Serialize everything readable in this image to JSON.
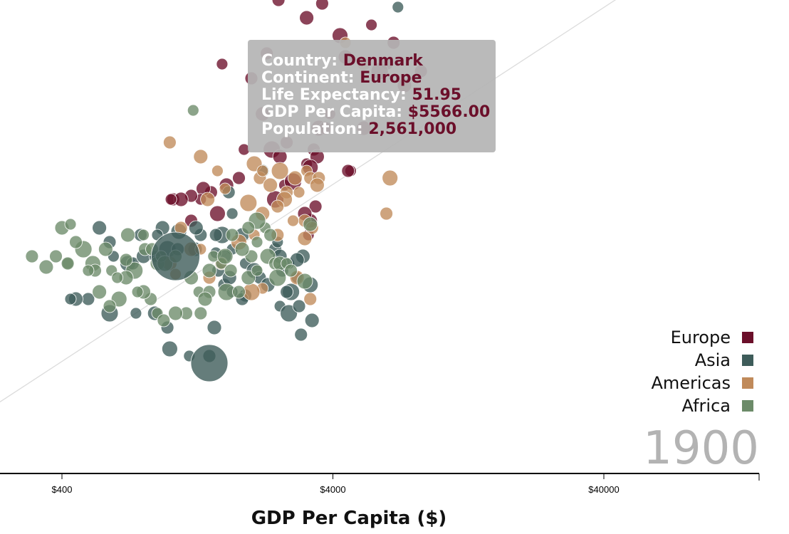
{
  "chart_data": {
    "type": "scatter",
    "title": "",
    "xlabel": "GDP Per Capita ($)",
    "ylabel": "",
    "x_scale": "log",
    "xlim": [
      170,
      70000
    ],
    "ylim": [
      20,
      90
    ],
    "grid": false,
    "legend_position": "right",
    "x_ticks": [
      {
        "value": 400,
        "label": "$400"
      },
      {
        "value": 4000,
        "label": "$4000"
      },
      {
        "value": 40000,
        "label": "$40000"
      }
    ],
    "year": "1900",
    "trend_line": {
      "x": [
        170,
        70000
      ],
      "y": [
        17.0,
        82.0
      ]
    },
    "series": [
      {
        "name": "Europe",
        "color": "#6b0f2a",
        "points": [
          [
            2937,
            80
          ],
          [
            2520,
            77
          ],
          [
            3650,
            76.5
          ],
          [
            3200,
            74.5
          ],
          [
            5550,
            73.5
          ],
          [
            4250,
            72
          ],
          [
            6700,
            71
          ],
          [
            4450,
            69
          ],
          [
            6350,
            68
          ],
          [
            5950,
            67
          ],
          [
            8450,
            67
          ],
          [
            7350,
            65
          ],
          [
            1560,
            68
          ],
          [
            2280,
            69.5
          ],
          [
            2000,
            66
          ],
          [
            2200,
            61
          ],
          [
            3900,
            61
          ],
          [
            3550,
            59
          ],
          [
            3750,
            59
          ],
          [
            5200,
            59
          ],
          [
            1880,
            56
          ],
          [
            2380,
            56
          ],
          [
            2700,
            57
          ],
          [
            2550,
            55
          ],
          [
            4650,
            53
          ],
          [
            4550,
            53
          ],
          [
            3400,
            56
          ],
          [
            3500,
            55
          ],
          [
            3200,
            54
          ],
          [
            3300,
            53.5
          ],
          [
            1800,
            52
          ],
          [
            1620,
            51
          ],
          [
            2650,
            51
          ],
          [
            2850,
            51.5
          ],
          [
            1420,
            50
          ],
          [
            1330,
            50.5
          ],
          [
            1300,
            49
          ],
          [
            1200,
            49.5
          ],
          [
            1030,
            49
          ],
          [
            1100,
            49
          ],
          [
            1010,
            49
          ],
          [
            1500,
            47
          ],
          [
            1200,
            46
          ],
          [
            3300,
            46
          ],
          [
            3250,
            44
          ],
          [
            2450,
            49
          ],
          [
            3450,
            48
          ],
          [
            3150,
            47
          ]
        ]
      },
      {
        "name": "Asia",
        "color": "#3e5c5a",
        "points": [
          [
            6950,
            76
          ],
          [
            1650,
            50
          ],
          [
            2200,
            53
          ],
          [
            940,
            45
          ],
          [
            900,
            44
          ],
          [
            1080,
            44.5
          ],
          [
            1300,
            44
          ],
          [
            1250,
            45
          ],
          [
            1700,
            47
          ],
          [
            1560,
            44
          ],
          [
            1480,
            44
          ],
          [
            1850,
            44
          ],
          [
            1700,
            42
          ],
          [
            1600,
            41
          ],
          [
            2450,
            42
          ],
          [
            2550,
            41
          ],
          [
            2750,
            40
          ],
          [
            3300,
            37
          ],
          [
            2600,
            39
          ],
          [
            3100,
            41
          ],
          [
            2950,
            38
          ],
          [
            2800,
            36
          ],
          [
            2700,
            36
          ],
          [
            2950,
            40.5
          ],
          [
            2500,
            43
          ],
          [
            780,
            44
          ],
          [
            600,
            43
          ],
          [
            550,
            45
          ],
          [
            620,
            41
          ],
          [
            700,
            40
          ],
          [
            730,
            40
          ],
          [
            800,
            41
          ],
          [
            880,
            41
          ],
          [
            980,
            42
          ],
          [
            1070,
            42
          ],
          [
            1240,
            42
          ],
          [
            1480,
            41.5
          ],
          [
            1510,
            39
          ],
          [
            1590,
            37
          ],
          [
            1660,
            38
          ],
          [
            1900,
            40
          ],
          [
            2050,
            39
          ],
          [
            2150,
            38
          ],
          [
            2300,
            37
          ],
          [
            2550,
            34
          ],
          [
            2750,
            33
          ],
          [
            3000,
            34
          ],
          [
            3350,
            32
          ],
          [
            1700,
            36
          ],
          [
            1900,
            35.5
          ],
          [
            1850,
            35
          ],
          [
            1460,
            31
          ],
          [
            1180,
            27
          ],
          [
            1000,
            28
          ],
          [
            980,
            31
          ],
          [
            880,
            33
          ],
          [
            750,
            33
          ],
          [
            600,
            33
          ],
          [
            500,
            35
          ],
          [
            450,
            35
          ],
          [
            430,
            35
          ],
          [
            3050,
            30
          ],
          [
            1400,
            27
          ]
        ]
      },
      {
        "name": "Americas",
        "color": "#c08a5a",
        "points": [
          [
            4450,
            71
          ],
          [
            5200,
            68
          ],
          [
            1000,
            57
          ],
          [
            1300,
            55
          ],
          [
            1500,
            53
          ],
          [
            2050,
            54
          ],
          [
            2150,
            52
          ],
          [
            2350,
            51
          ],
          [
            2200,
            53
          ],
          [
            2550,
            53
          ],
          [
            2700,
            50
          ],
          [
            2900,
            52
          ],
          [
            3200,
            53
          ],
          [
            3300,
            52
          ],
          [
            3550,
            52
          ],
          [
            3500,
            51
          ],
          [
            3000,
            50
          ],
          [
            2650,
            49
          ],
          [
            2500,
            48
          ],
          [
            1380,
            49
          ],
          [
            1600,
            50.5
          ],
          [
            1950,
            48.5
          ],
          [
            3150,
            46
          ],
          [
            2200,
            47
          ],
          [
            2850,
            46
          ],
          [
            2500,
            44
          ],
          [
            3350,
            45
          ],
          [
            3150,
            43.5
          ],
          [
            2050,
            44
          ],
          [
            1800,
            43
          ],
          [
            3300,
            35
          ],
          [
            2950,
            38
          ],
          [
            2200,
            36.5
          ],
          [
            2000,
            36
          ],
          [
            1100,
            45
          ],
          [
            1200,
            42
          ],
          [
            1300,
            42
          ],
          [
            1550,
            40
          ],
          [
            1400,
            38
          ],
          [
            1000,
            40
          ],
          [
            1050,
            38.5
          ],
          [
            6500,
            52
          ],
          [
            6300,
            47
          ]
        ]
      },
      {
        "name": "Africa",
        "color": "#6c8b69",
        "points": [
          [
            1220,
            61.5
          ],
          [
            310,
            41
          ],
          [
            380,
            41
          ],
          [
            350,
            39.5
          ],
          [
            420,
            40
          ],
          [
            520,
            40
          ],
          [
            530,
            39
          ],
          [
            580,
            42
          ],
          [
            610,
            39
          ],
          [
            740,
            39
          ],
          [
            690,
            40.5
          ],
          [
            700,
            44
          ],
          [
            800,
            44
          ],
          [
            810,
            42
          ],
          [
            860,
            42
          ],
          [
            900,
            40
          ],
          [
            930,
            41
          ],
          [
            960,
            40
          ],
          [
            1050,
            41
          ],
          [
            1400,
            39
          ],
          [
            1550,
            40
          ],
          [
            1620,
            36
          ],
          [
            1680,
            39
          ],
          [
            1200,
            38
          ],
          [
            1280,
            36
          ],
          [
            1400,
            36
          ],
          [
            1800,
            36
          ],
          [
            1950,
            38
          ],
          [
            2100,
            39
          ],
          [
            2300,
            41
          ],
          [
            2450,
            40
          ],
          [
            2550,
            40
          ],
          [
            2700,
            40
          ],
          [
            2500,
            38
          ],
          [
            1150,
            33
          ],
          [
            1050,
            33
          ],
          [
            900,
            33
          ],
          [
            950,
            32
          ],
          [
            850,
            35
          ],
          [
            800,
            36
          ],
          [
            760,
            36
          ],
          [
            650,
            35
          ],
          [
            600,
            34
          ],
          [
            550,
            36
          ],
          [
            500,
            39
          ],
          [
            480,
            42
          ],
          [
            450,
            43
          ],
          [
            400,
            45
          ],
          [
            430,
            45.5
          ],
          [
            420,
            40
          ],
          [
            1300,
            33
          ],
          [
            1350,
            35
          ],
          [
            1450,
            41
          ],
          [
            1600,
            41
          ],
          [
            2000,
            41
          ],
          [
            3300,
            45.5
          ],
          [
            2250,
            45
          ],
          [
            2100,
            46
          ],
          [
            1950,
            45
          ],
          [
            1850,
            42
          ],
          [
            2100,
            43
          ],
          [
            2350,
            44
          ],
          [
            1700,
            44
          ],
          [
            690,
            38
          ],
          [
            640,
            38
          ],
          [
            3150,
            37.5
          ],
          [
            2800,
            39
          ]
        ]
      }
    ],
    "big_bubbles": [
      {
        "series": "Asia",
        "x": 1050,
        "y": 41,
        "r": 34
      },
      {
        "series": "Asia",
        "x": 1400,
        "y": 26,
        "r": 26
      }
    ],
    "highlighted": {
      "series": "Europe",
      "x": 5566,
      "y": 51.95
    }
  },
  "tooltip": {
    "country_label": "Country:",
    "country": "Denmark",
    "continent_label": "Continent:",
    "continent": "Europe",
    "life_label": "Life Expectancy:",
    "life": "51.95",
    "gdp_label": "GDP Per Capita:",
    "gdp": "$5566.00",
    "pop_label": "Population:",
    "pop": "2,561,000"
  }
}
